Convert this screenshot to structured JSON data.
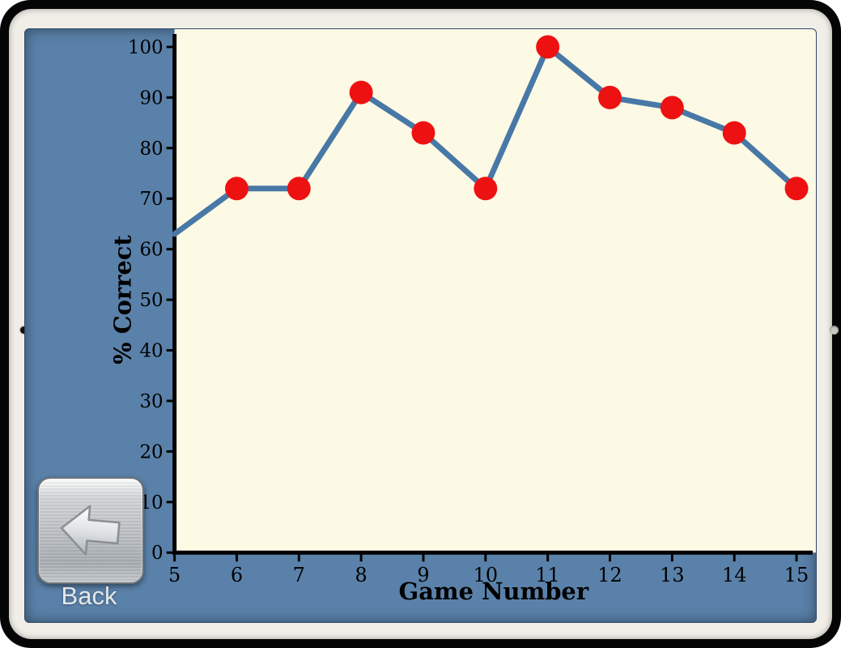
{
  "app": {
    "back_button": {
      "label": "Back",
      "icon": "back-arrow-icon"
    }
  },
  "chart_data": {
    "type": "line",
    "title": "",
    "xlabel": "Game Number",
    "ylabel": "% Correct",
    "x": [
      5,
      6,
      7,
      8,
      9,
      10,
      11,
      12,
      13,
      14,
      15
    ],
    "values": [
      63,
      72,
      72,
      91,
      83,
      72,
      100,
      90,
      88,
      83,
      72
    ],
    "markers": [
      false,
      true,
      true,
      true,
      true,
      true,
      true,
      true,
      true,
      true,
      true
    ],
    "xticks": [
      5,
      6,
      7,
      8,
      9,
      10,
      11,
      12,
      13,
      14,
      15
    ],
    "yticks": [
      0,
      10,
      20,
      30,
      40,
      50,
      60,
      70,
      80,
      90,
      100
    ],
    "xlim": [
      5,
      15
    ],
    "ylim": [
      0,
      100
    ],
    "grid": false,
    "legend_position": "none",
    "colors": {
      "line": "#4878a6",
      "marker": "#ee1111",
      "axis": "#000000",
      "tick_label": "#000000",
      "plot_background": "#fcf9e5",
      "app_background": "#5a81a9"
    }
  }
}
